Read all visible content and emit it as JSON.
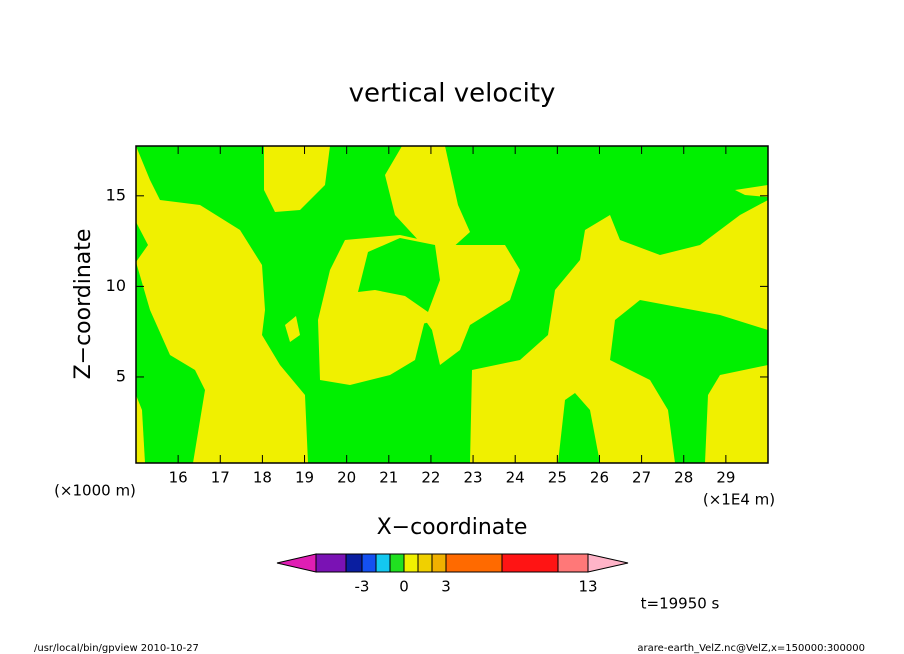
{
  "chart_data": {
    "type": "contour",
    "title": "vertical velocity",
    "x_label": "X−coordinate",
    "y_label": "Z−coordinate",
    "x_unit": "(×1E4 m)",
    "y_unit": "(×1000 m)",
    "xlim": [
      15,
      30
    ],
    "xticks": [
      16,
      17,
      18,
      19,
      20,
      21,
      22,
      23,
      24,
      25,
      26,
      27,
      28,
      29
    ],
    "ylim": [
      0.25,
      17.75
    ],
    "yticks": [
      5,
      10,
      15
    ],
    "colorbar_colors": [
      "#e01eb4",
      "#7a12b4",
      "#0a1ea0",
      "#1450f0",
      "#14c8f0",
      "#20e020",
      "#f0f000",
      "#f0d000",
      "#f0b000",
      "#ff6a00",
      "#ff1414",
      "#ff7878",
      "#ffb4c8"
    ],
    "colorbar_ticks": [
      -3,
      0,
      3,
      13
    ],
    "time_label": "t=19950 s",
    "footer_left": "/usr/local/bin/gpview   2010-10-27",
    "footer_right": "arare-earth_VelZ.nc@VelZ,x=150000:300000"
  }
}
